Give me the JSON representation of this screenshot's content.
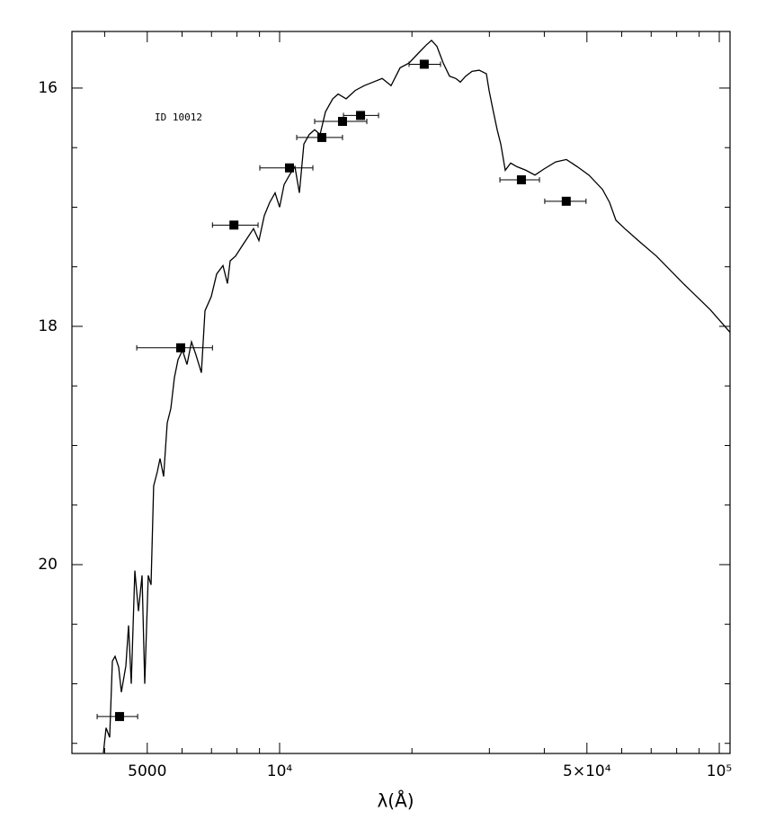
{
  "chart_data": {
    "type": "sed",
    "annotation": "ID 10012",
    "x_label": "λ(Å)",
    "x_log": true,
    "y_inverted": true,
    "xlim": [
      3370,
      105800
    ],
    "ylim": [
      21.585,
      15.525
    ],
    "xticks": [
      {
        "value": 5000,
        "label": "5000"
      },
      {
        "value": 10000,
        "label": "10⁴"
      },
      {
        "value": 50000,
        "label": "5×10⁴"
      },
      {
        "value": 100000,
        "label": "10⁵"
      }
    ],
    "xminorticks": [
      4000,
      6000,
      7000,
      8000,
      9000,
      20000,
      30000,
      40000,
      60000,
      70000,
      80000,
      90000
    ],
    "yticks": [
      16,
      18,
      20
    ],
    "yminorticks": [
      16.5,
      17,
      17.5,
      18.5,
      19,
      19.5,
      20.5,
      21,
      21.5
    ],
    "color": "#000000",
    "model": {
      "x": [
        3973,
        4031,
        4107,
        4165,
        4225,
        4305,
        4367,
        4471,
        4534,
        4598,
        4686,
        4775,
        4866,
        4935,
        5027,
        5099,
        5171,
        5272,
        5346,
        5448,
        5552,
        5656,
        5765,
        5873,
        6013,
        6157,
        6304,
        6453,
        6640,
        6766,
        6991,
        7193,
        7432,
        7610,
        7718,
        7939,
        8166,
        8442,
        8725,
        8974,
        9230,
        9495,
        9765,
        10000,
        10238,
        10531,
        10833,
        11092,
        11355,
        11681,
        12016,
        12359,
        12715,
        13207,
        13586,
        14169,
        14855,
        15570,
        16320,
        17110,
        17930,
        18790,
        19700,
        20650,
        21540,
        22160,
        22800,
        23560,
        24350,
        25160,
        25760,
        26500,
        27390,
        28440,
        29530,
        29960,
        30530,
        31250,
        31850,
        32610,
        33540,
        34660,
        36340,
        38080,
        39920,
        42450,
        44910,
        47530,
        50510,
        54230,
        56300,
        58210,
        61000,
        65460,
        71930,
        82830,
        95410,
        105800
      ],
      "y": [
        21.58,
        21.37,
        21.45,
        20.81,
        20.77,
        20.86,
        21.07,
        20.85,
        20.51,
        21.0,
        20.05,
        20.39,
        20.09,
        21.0,
        20.09,
        20.17,
        19.34,
        19.22,
        19.11,
        19.26,
        18.81,
        18.69,
        18.43,
        18.28,
        18.2,
        18.32,
        18.13,
        18.24,
        18.39,
        17.87,
        17.75,
        17.56,
        17.49,
        17.64,
        17.45,
        17.41,
        17.34,
        17.26,
        17.18,
        17.28,
        17.07,
        16.96,
        16.88,
        17.0,
        16.81,
        16.73,
        16.66,
        16.88,
        16.47,
        16.39,
        16.35,
        16.39,
        16.2,
        16.09,
        16.05,
        16.09,
        16.02,
        15.98,
        15.95,
        15.92,
        15.98,
        15.83,
        15.79,
        15.71,
        15.64,
        15.6,
        15.65,
        15.79,
        15.9,
        15.92,
        15.95,
        15.9,
        15.86,
        15.85,
        15.88,
        16.02,
        16.17,
        16.35,
        16.47,
        16.69,
        16.63,
        16.66,
        16.69,
        16.73,
        16.68,
        16.62,
        16.6,
        16.66,
        16.73,
        16.85,
        16.96,
        17.11,
        17.18,
        17.28,
        17.41,
        17.64,
        17.86,
        18.05
      ]
    },
    "photometry": {
      "x": [
        4325,
        5957,
        7873,
        10531,
        12476,
        13902,
        15280,
        21330,
        35480,
        44870
      ],
      "y": [
        21.275,
        18.18,
        17.15,
        16.67,
        16.415,
        16.28,
        16.23,
        15.8,
        16.77,
        16.95
      ],
      "x_lo": [
        3846,
        4732,
        7035,
        9016,
        10937,
        12016,
        13970,
        19700,
        31700,
        40090
      ],
      "x_hi": [
        4755,
        7035,
        8933,
        11904,
        13902,
        15790,
        16790,
        23230,
        39000,
        49770
      ]
    }
  }
}
